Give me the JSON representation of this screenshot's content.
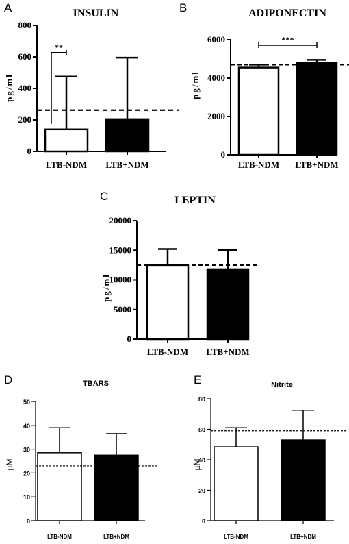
{
  "chart_data": [
    {
      "panel": "A",
      "type": "bar",
      "title": "INSULIN",
      "ylabel": "pg/ml",
      "categories": [
        "LTB-NDM",
        "LTB+NDM"
      ],
      "values": [
        140,
        205
      ],
      "error_upper": [
        475,
        595
      ],
      "bar_fills": [
        "#ffffff",
        "#000000"
      ],
      "ylim": [
        0,
        800
      ],
      "yticks": [
        "0",
        "200",
        "400",
        "600",
        "800"
      ],
      "reference_line": 262,
      "significance": {
        "label": "**",
        "between": "LTB-NDM"
      }
    },
    {
      "panel": "B",
      "type": "bar",
      "title": "ADIPONECTIN",
      "ylabel": "pg/ml",
      "categories": [
        "LTB-NDM",
        "LTB+NDM"
      ],
      "values": [
        4550,
        4800
      ],
      "error_upper": [
        4700,
        4950
      ],
      "bar_fills": [
        "#ffffff",
        "#000000"
      ],
      "ylim": [
        0,
        6000
      ],
      "yticks": [
        "0",
        "2000",
        "4000",
        "6000"
      ],
      "reference_line": 4700,
      "significance": {
        "label": "***",
        "between": "LTB-NDM vs LTB+NDM"
      }
    },
    {
      "panel": "C",
      "type": "bar",
      "title": "LEPTIN",
      "ylabel": "pg/ml",
      "categories": [
        "LTB-NDM",
        "LTB+NDM"
      ],
      "values": [
        12500,
        11800
      ],
      "error_upper": [
        15200,
        15000
      ],
      "bar_fills": [
        "#ffffff",
        "#000000"
      ],
      "ylim": [
        0,
        20000
      ],
      "yticks": [
        "0",
        "5000",
        "10000",
        "15000",
        "20000"
      ],
      "reference_line": 12500
    },
    {
      "panel": "D",
      "type": "bar",
      "title": "TBARS",
      "ylabel": "µM",
      "categories": [
        "LTB-NDM",
        "LTB+NDM"
      ],
      "values": [
        28.5,
        27.5
      ],
      "error_upper": [
        39,
        36.5
      ],
      "bar_fills": [
        "#ffffff",
        "#000000"
      ],
      "ylim": [
        0,
        50
      ],
      "yticks": [
        "0",
        "10",
        "20",
        "30",
        "40",
        "50"
      ],
      "reference_line": 23
    },
    {
      "panel": "E",
      "type": "bar",
      "title": "Nitrite",
      "ylabel": "µM",
      "categories": [
        "LTB-NDM",
        "LTB+NDM"
      ],
      "values": [
        48.5,
        53
      ],
      "error_upper": [
        61,
        72.5
      ],
      "bar_fills": [
        "#ffffff",
        "#000000"
      ],
      "ylim": [
        0,
        80
      ],
      "yticks": [
        "0",
        "20",
        "40",
        "60",
        "80"
      ],
      "reference_line": 59
    }
  ]
}
